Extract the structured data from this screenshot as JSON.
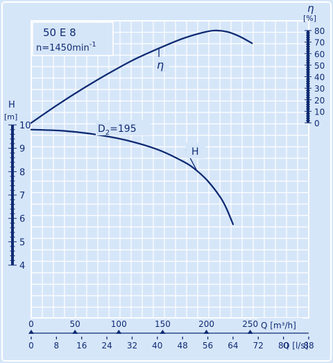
{
  "chart_data": {
    "type": "line",
    "title": "50 E 8",
    "subtitle": "n=1450min",
    "subtitle_sup": "-1",
    "colors": {
      "background": "#d6e6f9",
      "ink": "#0f2b73",
      "paper": "#ffffff"
    },
    "grid": true,
    "x": {
      "q_m3h_label": "Q [m³/h]",
      "q_m3h_ticks": [
        "0",
        "50",
        "100",
        "150",
        "200",
        "250"
      ],
      "q_ls_label": "Q [l/s]",
      "q_ls_ticks": [
        "0",
        "8",
        "16",
        "24",
        "32",
        "40",
        "48",
        "56",
        "64",
        "72",
        "80",
        "88"
      ],
      "range_ls": [
        0,
        88
      ]
    },
    "y_head": {
      "label": "H",
      "unit": "[m]",
      "ticks": [
        "4",
        "5",
        "6",
        "7",
        "8",
        "9",
        "10"
      ],
      "range": [
        4,
        10
      ]
    },
    "y_eff": {
      "label": "η",
      "unit": "[%]",
      "ticks": [
        "0",
        "10",
        "20",
        "30",
        "40",
        "50",
        "60",
        "70",
        "80"
      ],
      "range": [
        0,
        80
      ]
    },
    "series": [
      {
        "name": "H",
        "axis": "head_m",
        "points": [
          [
            0,
            9.8
          ],
          [
            10,
            9.75
          ],
          [
            20,
            9.6
          ],
          [
            30,
            9.35
          ],
          [
            40,
            8.95
          ],
          [
            48,
            8.45
          ],
          [
            52,
            8.1
          ],
          [
            56,
            7.6
          ],
          [
            60,
            6.9
          ],
          [
            62,
            6.4
          ],
          [
            64,
            5.75
          ]
        ]
      },
      {
        "name": "η",
        "axis": "eff_pct",
        "points": [
          [
            0,
            0
          ],
          [
            8,
            15
          ],
          [
            16,
            29
          ],
          [
            24,
            42
          ],
          [
            32,
            54
          ],
          [
            40,
            64
          ],
          [
            48,
            73
          ],
          [
            54,
            78
          ],
          [
            58,
            80
          ],
          [
            62,
            79
          ],
          [
            66,
            75
          ],
          [
            70,
            69
          ]
        ]
      }
    ],
    "annotations": {
      "impeller": "D",
      "impeller_sub": "2",
      "impeller_value": "=195",
      "curve_h": "H",
      "curve_eff": "η"
    }
  }
}
